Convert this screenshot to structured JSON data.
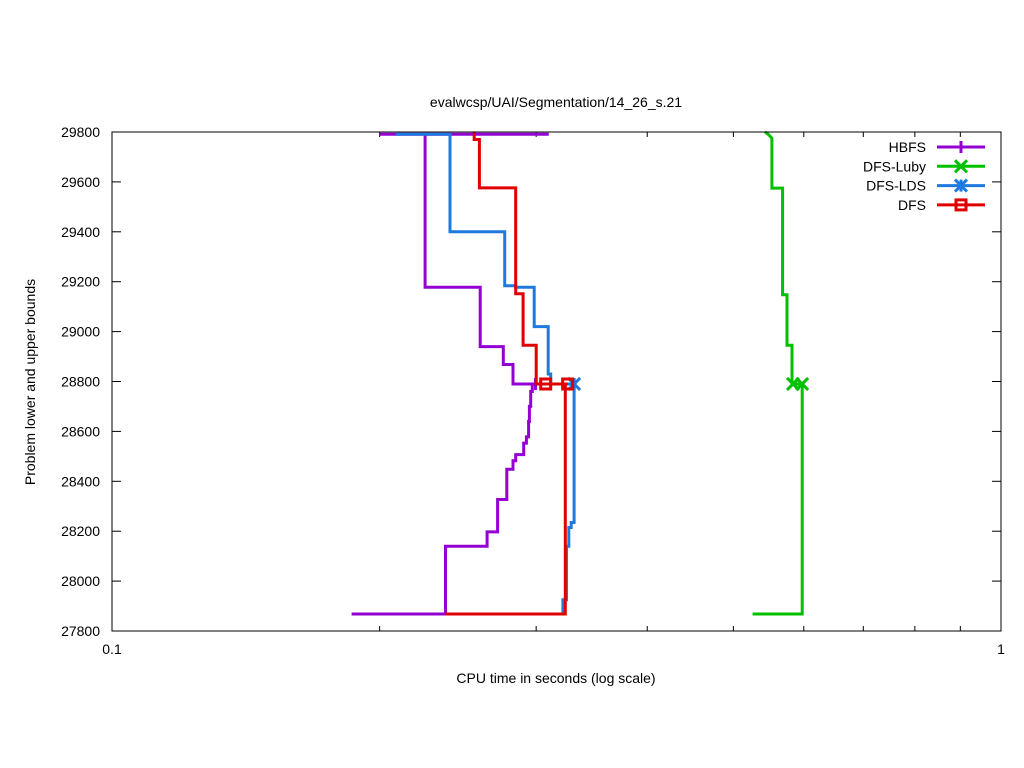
{
  "chart_data": {
    "type": "line",
    "title": "evalwcsp/UAI/Segmentation/14_26_s.21",
    "xlabel": "CPU time in seconds (log scale)",
    "ylabel": "Problem lower and upper bounds",
    "xscale": "log",
    "xlim": [
      0.1,
      1
    ],
    "ylim": [
      27800,
      29800
    ],
    "x_tick_labels": [
      {
        "value": 0.1,
        "label": "0.1"
      },
      {
        "value": 1,
        "label": "1"
      }
    ],
    "x_minor_ticks": [
      0.2,
      0.3,
      0.4,
      0.5,
      0.6,
      0.7,
      0.8,
      0.9
    ],
    "y_ticks": [
      27800,
      28000,
      28200,
      28400,
      28600,
      28800,
      29000,
      29200,
      29400,
      29600,
      29800
    ],
    "grid": false,
    "legend_position": "top-right",
    "series": [
      {
        "name": "HBFS",
        "color": "#9400d3",
        "marker": "plus",
        "upper": [
          [
            0.31,
            29791
          ],
          [
            0.2,
            29791
          ],
          [
            0.215,
            29791
          ],
          [
            0.225,
            29791
          ],
          [
            0.225,
            29178
          ],
          [
            0.2595,
            29178
          ],
          [
            0.2595,
            28940
          ],
          [
            0.2755,
            28940
          ],
          [
            0.2755,
            28868
          ],
          [
            0.2825,
            28868
          ],
          [
            0.2825,
            28790
          ],
          [
            0.285,
            28790
          ],
          [
            0.32,
            28790
          ],
          [
            0.3185,
            28790
          ]
        ],
        "lower": [
          [
            0.186,
            27868
          ],
          [
            0.2372,
            27868
          ],
          [
            0.2372,
            28140
          ],
          [
            0.2642,
            28140
          ],
          [
            0.2642,
            28197
          ],
          [
            0.2715,
            28197
          ],
          [
            0.2715,
            28327
          ],
          [
            0.278,
            28327
          ],
          [
            0.278,
            28448
          ],
          [
            0.2825,
            28448
          ],
          [
            0.2825,
            28482
          ],
          [
            0.2845,
            28482
          ],
          [
            0.2845,
            28507
          ],
          [
            0.2905,
            28507
          ],
          [
            0.2905,
            28553
          ],
          [
            0.2925,
            28553
          ],
          [
            0.2925,
            28578
          ],
          [
            0.2942,
            28578
          ],
          [
            0.2942,
            28640
          ],
          [
            0.2948,
            28640
          ],
          [
            0.2948,
            28700
          ],
          [
            0.2958,
            28700
          ],
          [
            0.2958,
            28760
          ],
          [
            0.297,
            28760
          ],
          [
            0.297,
            28790
          ]
        ],
        "markers": [
          [
            0.2995,
            28790
          ]
        ]
      },
      {
        "name": "DFS-Luby",
        "color": "#00c000",
        "marker": "x",
        "upper": [
          [
            0.5425,
            29801
          ],
          [
            0.5475,
            29790
          ],
          [
            0.5525,
            29775
          ],
          [
            0.5525,
            29575
          ],
          [
            0.568,
            29575
          ],
          [
            0.568,
            29148
          ],
          [
            0.5745,
            29148
          ],
          [
            0.5745,
            28945
          ],
          [
            0.582,
            28945
          ],
          [
            0.582,
            28790
          ],
          [
            0.5975,
            28790
          ]
        ],
        "lower": [
          [
            0.5255,
            27868
          ],
          [
            0.5975,
            27868
          ],
          [
            0.5975,
            28790
          ]
        ],
        "markers": [
          [
            0.5835,
            28790
          ],
          [
            0.5975,
            28790
          ]
        ]
      },
      {
        "name": "DFS-LDS",
        "color": "#1f7ae0",
        "marker": "star",
        "upper": [
          [
            0.2085,
            29791
          ],
          [
            0.24,
            29791
          ],
          [
            0.24,
            29400
          ],
          [
            0.2765,
            29400
          ],
          [
            0.2765,
            29184
          ],
          [
            0.2845,
            29184
          ],
          [
            0.2845,
            29178
          ],
          [
            0.2985,
            29178
          ],
          [
            0.2985,
            29020
          ],
          [
            0.3095,
            29020
          ],
          [
            0.3095,
            28830
          ],
          [
            0.3115,
            28830
          ],
          [
            0.3115,
            28790
          ],
          [
            0.331,
            28790
          ]
        ],
        "lower": [
          [
            0.3215,
            27868
          ],
          [
            0.3215,
            27925
          ],
          [
            0.3245,
            27925
          ],
          [
            0.3245,
            28140
          ],
          [
            0.3265,
            28140
          ],
          [
            0.3265,
            28215
          ],
          [
            0.3285,
            28215
          ],
          [
            0.3285,
            28235
          ],
          [
            0.331,
            28235
          ],
          [
            0.331,
            28790
          ]
        ],
        "markers": [
          [
            0.331,
            28790
          ]
        ]
      },
      {
        "name": "DFS",
        "color": "#e00000",
        "marker": "square",
        "upper": [
          [
            0.2555,
            29801
          ],
          [
            0.2555,
            29770
          ],
          [
            0.259,
            29770
          ],
          [
            0.259,
            29576
          ],
          [
            0.2845,
            29576
          ],
          [
            0.2845,
            29152
          ],
          [
            0.29,
            29152
          ],
          [
            0.29,
            28945
          ],
          [
            0.3,
            28945
          ],
          [
            0.3,
            28790
          ],
          [
            0.3255,
            28790
          ]
        ],
        "lower": [
          [
            0.2375,
            27868
          ],
          [
            0.3235,
            27868
          ],
          [
            0.3235,
            28790
          ]
        ],
        "markers": [
          [
            0.3075,
            28790
          ],
          [
            0.3255,
            28790
          ]
        ]
      }
    ]
  }
}
